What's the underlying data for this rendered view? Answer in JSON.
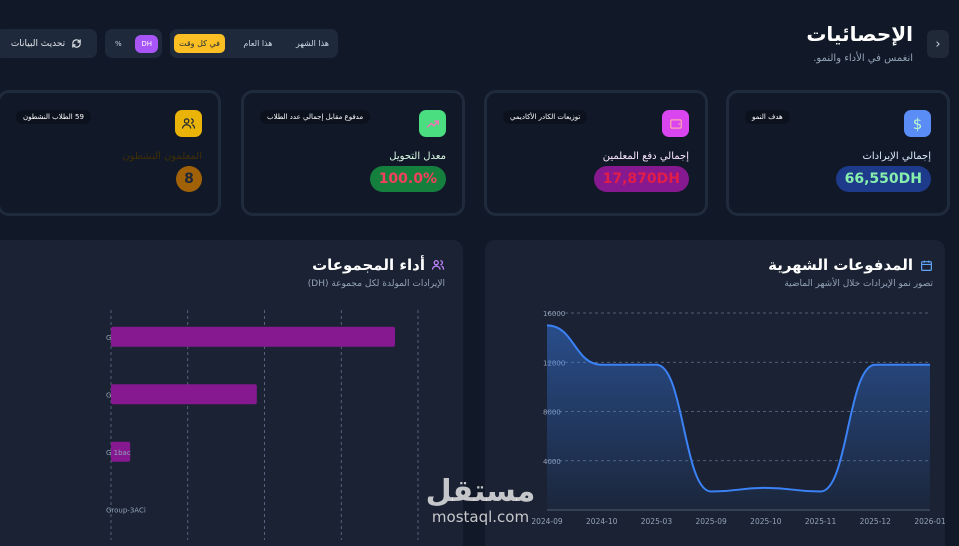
{
  "header": {
    "title": "الإحصائيات",
    "subtitle": "انغمس في الأداء والنمو.",
    "back_icon": "chevron-right-icon",
    "periods": [
      "هذا الشهر",
      "هذا العام",
      "في كل وقت"
    ],
    "active_period": "في كل وقت",
    "currencies": [
      "DH",
      "%"
    ],
    "active_currency": "DH",
    "refresh_label": "تحديث البيانات",
    "refresh_icon": "refresh-icon"
  },
  "cards": [
    {
      "id": "revenue",
      "badge": "هدف النمو",
      "label": "إجمالي الإيرادات",
      "value": "66,550DH",
      "icon": "dollar-icon",
      "bg": "#2563eb",
      "value_color": "#86efac"
    },
    {
      "id": "teacher-payments",
      "badge": "توزيعات الكادر الأكاديمي",
      "label": "إجمالي دفع المعلمين",
      "value": "17,870DH",
      "icon": "wallet-icon",
      "bg": "#c026d3",
      "value_color": "#e11d48"
    },
    {
      "id": "conversion",
      "badge": "مدفوع مقابل إجمالي عدد الطلاب",
      "label": "معدل التحويل",
      "value": "100.0%",
      "icon": "trending-up-icon",
      "bg": "#16a34a",
      "value_color": "#f43f5e"
    },
    {
      "id": "active-teachers",
      "badge": "59 الطلاب النشطون",
      "label": "المعلمون النشطون",
      "value": "8",
      "icon": "users-icon",
      "bg": "#ca8a04",
      "value_color": "#1f2937"
    }
  ],
  "payments_panel": {
    "title": "المدفوعات الشهرية",
    "subtitle": "تصور نمو الإيرادات خلال الأشهر الماضية",
    "icon": "calendar-icon"
  },
  "groups_panel": {
    "title": "أداء المجموعات",
    "subtitle": "الإيرادات المولدة لكل مجموعة (DH)",
    "icon": "users-icon"
  },
  "watermark": {
    "ar": "مستقل",
    "en": "mostaql.com"
  },
  "chart_data": [
    {
      "type": "area",
      "x": [
        "2024-09",
        "2024-10",
        "2025-03",
        "2025-09",
        "2025-10",
        "2025-11",
        "2025-12",
        "2026-01"
      ],
      "y": [
        15000,
        11800,
        11800,
        1500,
        1800,
        1500,
        11800,
        11800
      ],
      "ylim": [
        0,
        16000
      ],
      "yticks": [
        "16000",
        "12000",
        "8000",
        "4000"
      ],
      "grid": true,
      "color": "#3b82f6"
    },
    {
      "type": "bar",
      "orientation": "horizontal",
      "categories": [
        "G",
        "G",
        "G    1bac",
        "Group-3ACi"
      ],
      "values": [
        37000,
        19000,
        2500,
        0
      ],
      "xlim": [
        0,
        40000
      ],
      "grid": true,
      "color": "#86198f"
    }
  ]
}
